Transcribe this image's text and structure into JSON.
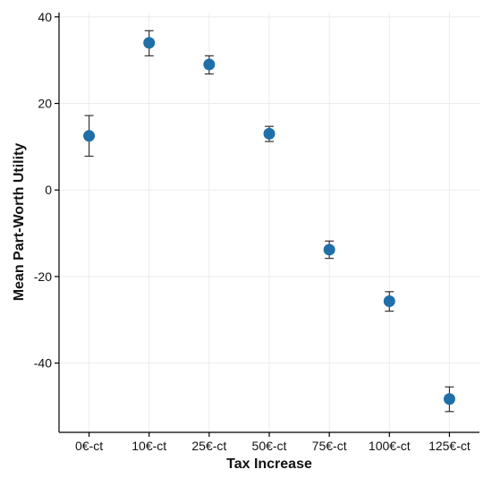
{
  "chart_data": {
    "type": "scatter",
    "title": "",
    "xlabel": "Tax Increase",
    "ylabel": "Mean Part-Worth Utility",
    "categories": [
      "0€-ct",
      "10€-ct",
      "25€-ct",
      "50€-ct",
      "75€-ct",
      "100€-ct",
      "125€-ct"
    ],
    "series": [
      {
        "values": [
          12.5,
          34.0,
          29.0,
          13.0,
          -13.8,
          -25.7,
          -48.3
        ],
        "err_low": [
          7.8,
          31.0,
          26.8,
          11.2,
          -15.8,
          -28.0,
          -51.2
        ],
        "err_high": [
          17.2,
          36.8,
          31.0,
          14.7,
          -11.8,
          -23.5,
          -45.5
        ]
      }
    ],
    "yticks": [
      40,
      20,
      0,
      -20,
      -40
    ],
    "ylim": [
      -56,
      41
    ],
    "grid": true,
    "colors": {
      "point": "#1f6fa8"
    }
  }
}
